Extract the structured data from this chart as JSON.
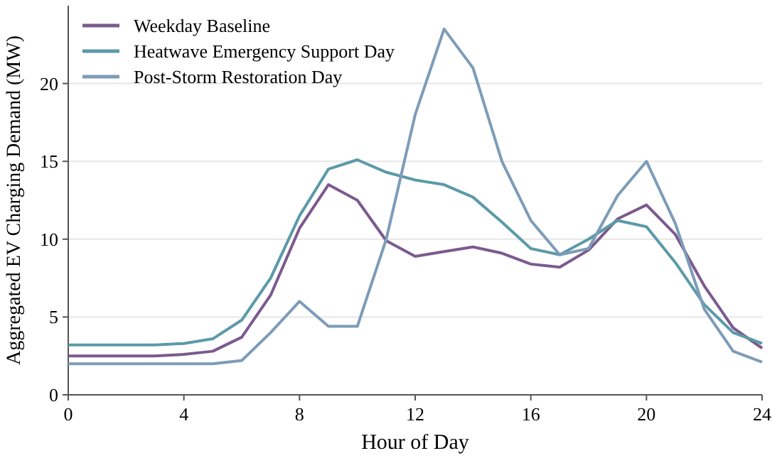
{
  "chart_data": {
    "type": "line",
    "xlabel": "Hour of Day",
    "ylabel": "Aggregated EV Charging Demand (MW)",
    "x": [
      0,
      1,
      2,
      3,
      4,
      5,
      6,
      7,
      8,
      9,
      10,
      11,
      12,
      13,
      14,
      15,
      16,
      17,
      18,
      19,
      20,
      21,
      22,
      23,
      24
    ],
    "series": [
      {
        "name": "Weekday Baseline",
        "color": "#7b5a8e",
        "values": [
          2.5,
          2.5,
          2.5,
          2.5,
          2.6,
          2.8,
          3.7,
          6.4,
          10.7,
          13.5,
          12.5,
          9.9,
          8.9,
          9.2,
          9.5,
          9.1,
          8.4,
          8.2,
          9.3,
          11.3,
          12.2,
          10.3,
          7.0,
          4.3,
          3.0
        ]
      },
      {
        "name": "Heatwave Emergency Support Day",
        "color": "#5b9aa8",
        "values": [
          3.2,
          3.2,
          3.2,
          3.2,
          3.3,
          3.6,
          4.8,
          7.5,
          11.5,
          14.5,
          15.1,
          14.3,
          13.8,
          13.5,
          12.7,
          11.1,
          9.4,
          9.0,
          10.0,
          11.2,
          10.8,
          8.5,
          5.8,
          4.0,
          3.3
        ]
      },
      {
        "name": "Post-Storm Restoration Day",
        "color": "#7d9cb8",
        "values": [
          2.0,
          2.0,
          2.0,
          2.0,
          2.0,
          2.0,
          2.2,
          4.0,
          6.0,
          4.4,
          4.4,
          10.0,
          18.0,
          23.5,
          21.0,
          15.0,
          11.2,
          9.0,
          9.4,
          12.8,
          15.0,
          11.0,
          5.5,
          2.8,
          2.1
        ]
      }
    ],
    "xlim": [
      0,
      24
    ],
    "xticks": [
      0,
      4,
      8,
      12,
      16,
      20,
      24
    ],
    "ylim": [
      0,
      25
    ],
    "yticks": [
      0,
      5,
      10,
      15,
      20
    ],
    "grid": "y",
    "legend": "top left",
    "marker": "none",
    "line_style": "solid"
  }
}
